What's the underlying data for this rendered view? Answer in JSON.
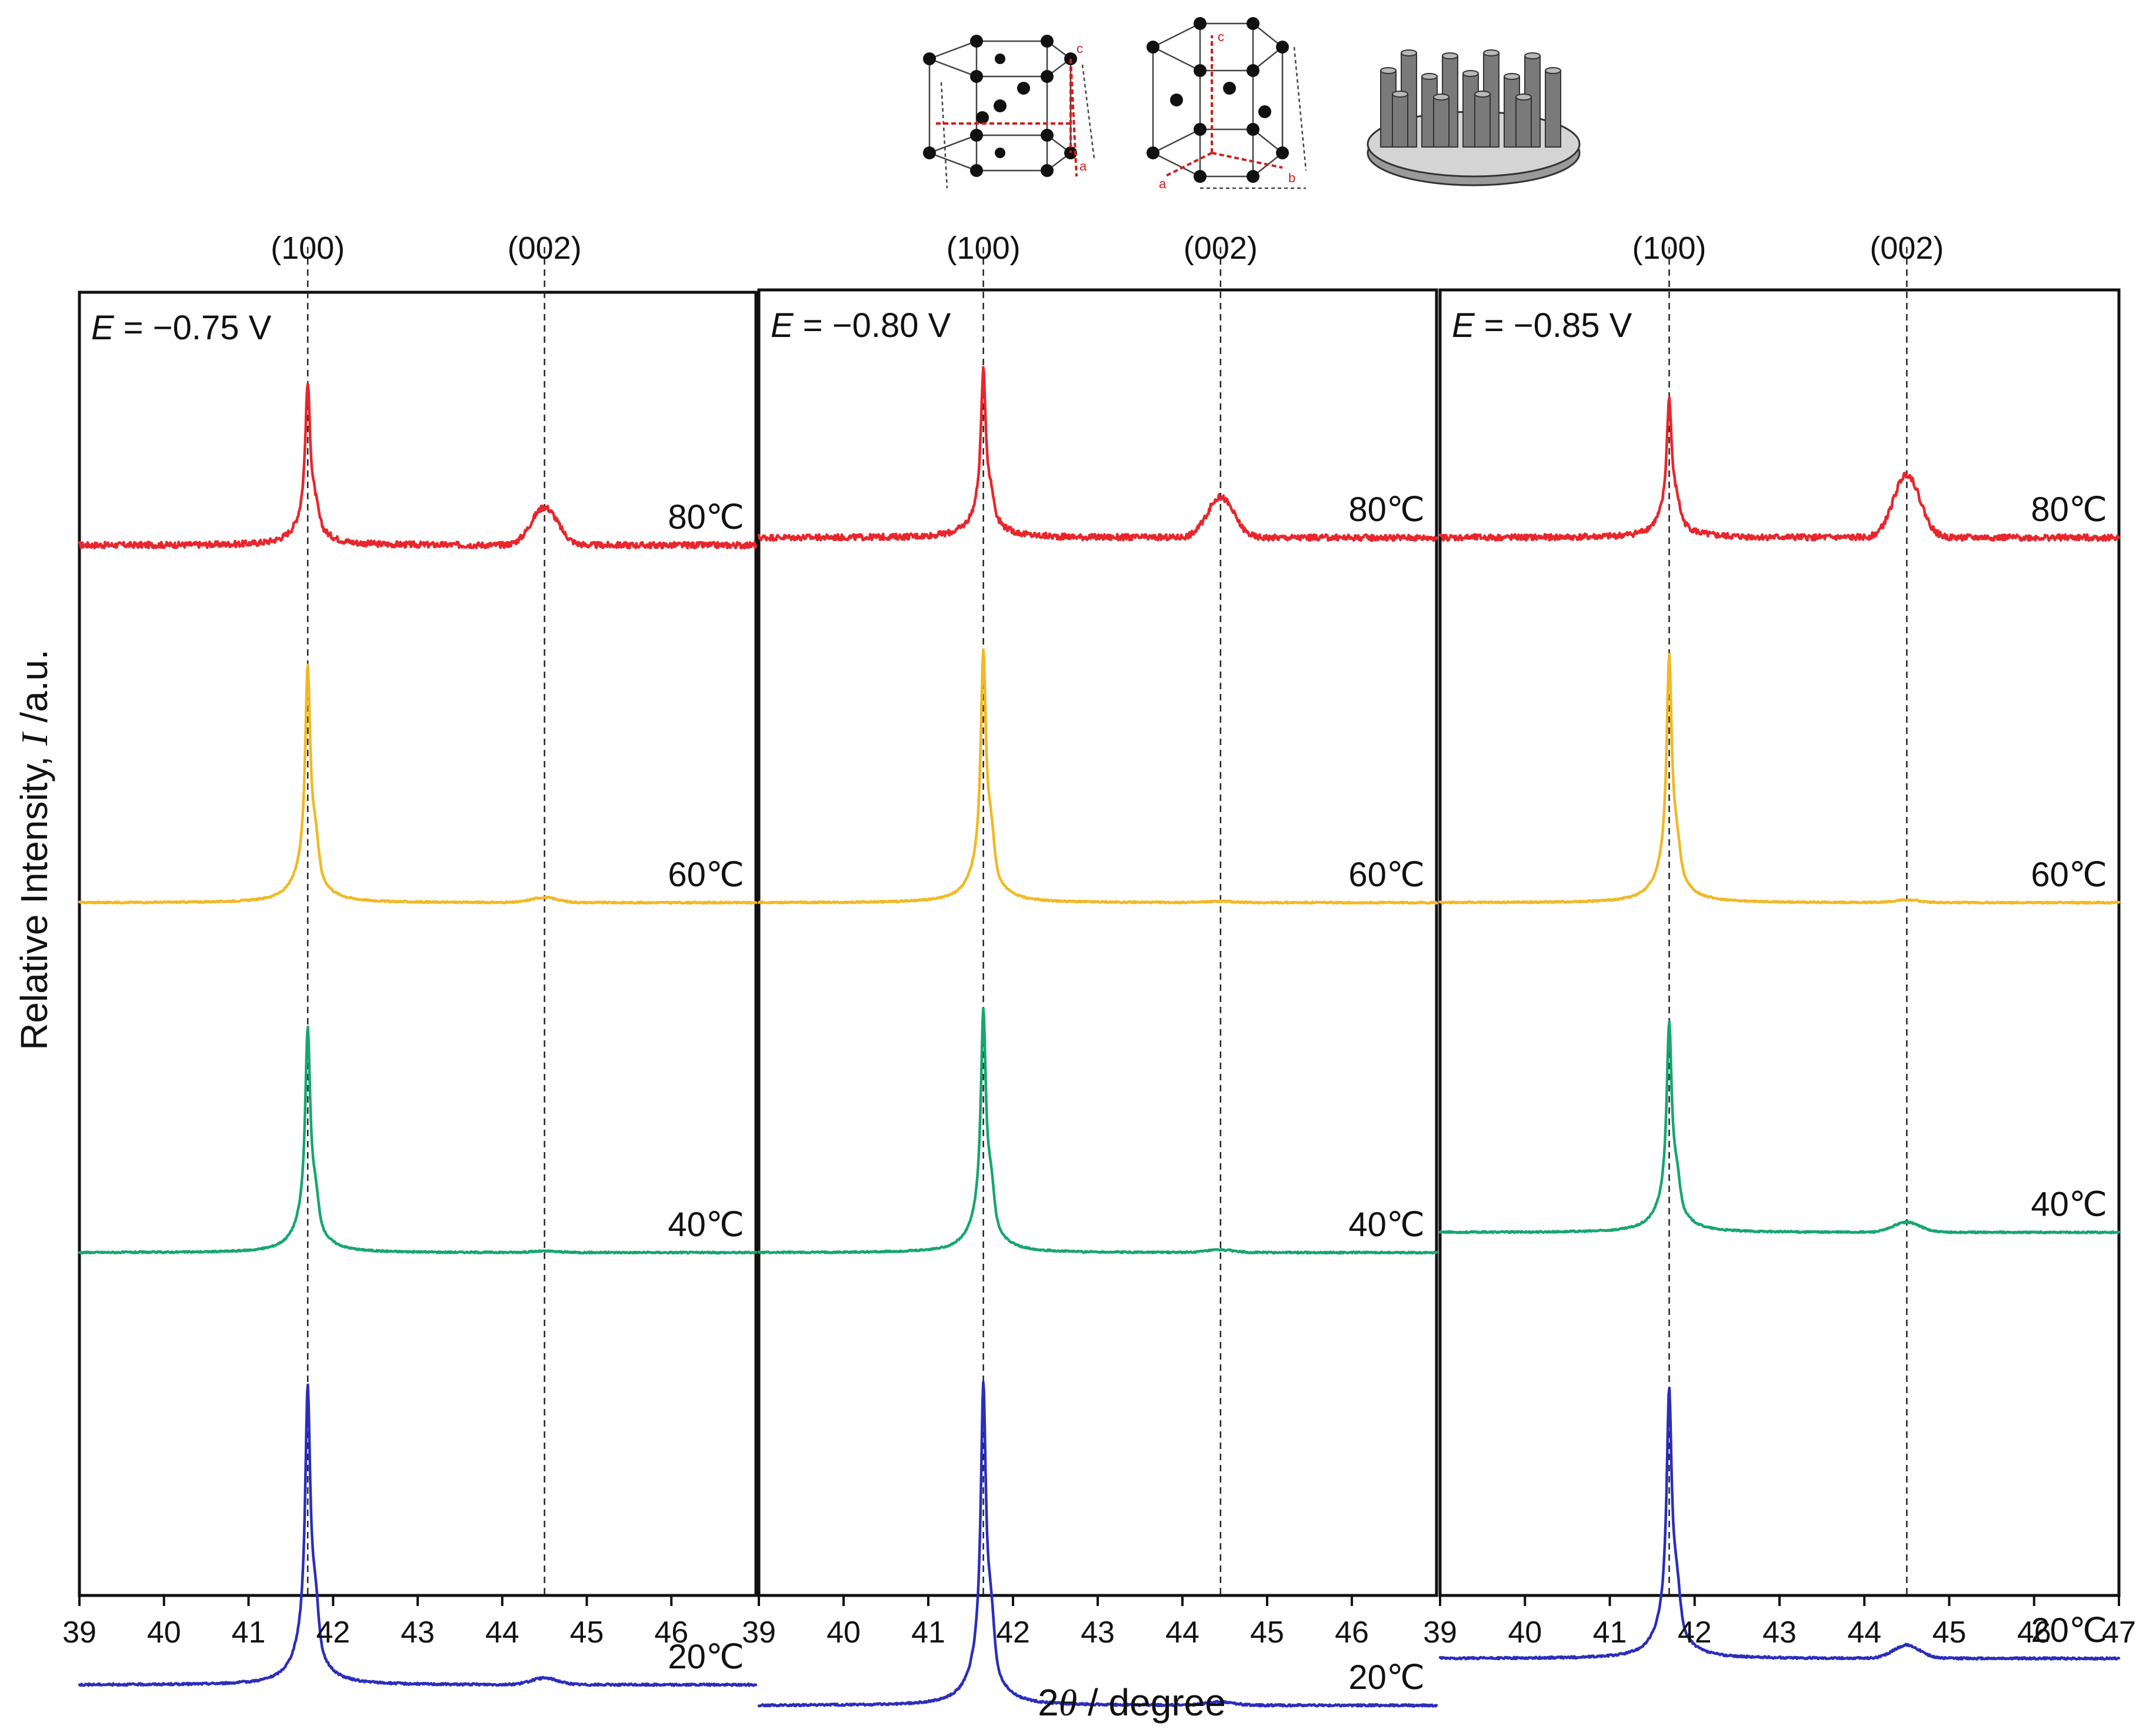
{
  "colors": {
    "80": "#e8262c",
    "60": "#f2b824",
    "40": "#16a66f",
    "20": "#2b2dbb",
    "frame": "#111111"
  },
  "axes": {
    "xlabel_prefix": "2",
    "xlabel_symbol": "θ",
    "xlabel_suffix": " / degree",
    "ylabel_prefix": "Relative Intensity, ",
    "ylabel_symbol": "I",
    "ylabel_suffix": " /a.u."
  },
  "insets": [
    {
      "icon": "hcp-unit-cell-icon",
      "labels": [
        "a",
        "c"
      ]
    },
    {
      "icon": "hcp-unit-cell-c-axis-icon",
      "labels": [
        "c",
        "a",
        "b"
      ]
    },
    {
      "icon": "nanowire-array-icon"
    }
  ],
  "chart_data": [
    {
      "type": "line",
      "panel_label_var": "E",
      "panel_label_value": " = −0.75 V",
      "x_range": [
        39,
        47
      ],
      "x_ticks": [
        "39",
        "40",
        "41",
        "42",
        "43",
        "44",
        "45",
        "46"
      ],
      "peaks": [
        {
          "label": "(100)",
          "x": 41.7
        },
        {
          "label": "(002)",
          "x": 44.5
        }
      ],
      "xlabel": "2θ / degree",
      "ylabel": "Relative Intensity, I /a.u.",
      "series": [
        {
          "name": "80℃",
          "temp": "80",
          "baseline": 0.03,
          "peak100": 0.64,
          "peak002": 0.15,
          "shoulder": 0.38
        },
        {
          "name": "60℃",
          "temp": "60",
          "baseline": 0.0,
          "peak100": 0.94,
          "peak002": 0.02,
          "shoulder": 0.52
        },
        {
          "name": "40℃",
          "temp": "40",
          "baseline": 0.0,
          "peak100": 0.89,
          "peak002": 0.005,
          "shoulder": 0.45
        },
        {
          "name": "20℃",
          "temp": "20",
          "baseline": 0.0,
          "peak100": 0.91,
          "peak002": 0.02,
          "shoulder": 0.55
        }
      ]
    },
    {
      "type": "line",
      "panel_label_var": "E",
      "panel_label_value": " = −0.80 V",
      "x_range": [
        39,
        47
      ],
      "x_ticks": [
        "39",
        "40",
        "41",
        "42",
        "43",
        "44",
        "45",
        "46"
      ],
      "peaks": [
        {
          "label": "(100)",
          "x": 41.65
        },
        {
          "label": "(002)",
          "x": 44.45
        }
      ],
      "xlabel": "2θ / degree",
      "ylabel": "Relative Intensity, I /a.u.",
      "series": [
        {
          "name": "80℃",
          "temp": "80",
          "baseline": 0.06,
          "peak100": 0.66,
          "peak002": 0.16,
          "shoulder": 0.4
        },
        {
          "name": "60℃",
          "temp": "60",
          "baseline": 0.0,
          "peak100": 1.0,
          "peak002": 0.005,
          "shoulder": 0.55
        },
        {
          "name": "40℃",
          "temp": "40",
          "baseline": 0.0,
          "peak100": 0.96,
          "peak002": 0.01,
          "shoulder": 0.55
        },
        {
          "name": "20℃",
          "temp": "20",
          "baseline": 0.0,
          "peak100": 0.98,
          "peak002": 0.01,
          "shoulder": 0.55
        }
      ]
    },
    {
      "type": "line",
      "panel_label_var": "E",
      "panel_label_value": " = −0.85 V",
      "x_range": [
        39,
        47
      ],
      "x_ticks": [
        "39",
        "40",
        "41",
        "42",
        "43",
        "44",
        "45",
        "46",
        "47"
      ],
      "peaks": [
        {
          "label": "(100)",
          "x": 41.7
        },
        {
          "label": "(002)",
          "x": 44.5
        }
      ],
      "xlabel": "2θ / degree",
      "ylabel": "Relative Intensity, I /a.u.",
      "series": [
        {
          "name": "80℃",
          "temp": "80",
          "baseline": 0.06,
          "peak100": 0.55,
          "peak002": 0.25,
          "shoulder": 0.42
        },
        {
          "name": "60℃",
          "temp": "60",
          "baseline": 0.0,
          "peak100": 0.98,
          "peak002": 0.01,
          "shoulder": 0.4
        },
        {
          "name": "40℃",
          "temp": "40",
          "baseline": 0.08,
          "peak100": 0.83,
          "peak002": 0.04,
          "shoulder": 0.48
        },
        {
          "name": "20℃",
          "temp": "20",
          "baseline": 0.08,
          "peak100": 0.82,
          "peak002": 0.04,
          "shoulder": 0.5
        }
      ]
    }
  ]
}
